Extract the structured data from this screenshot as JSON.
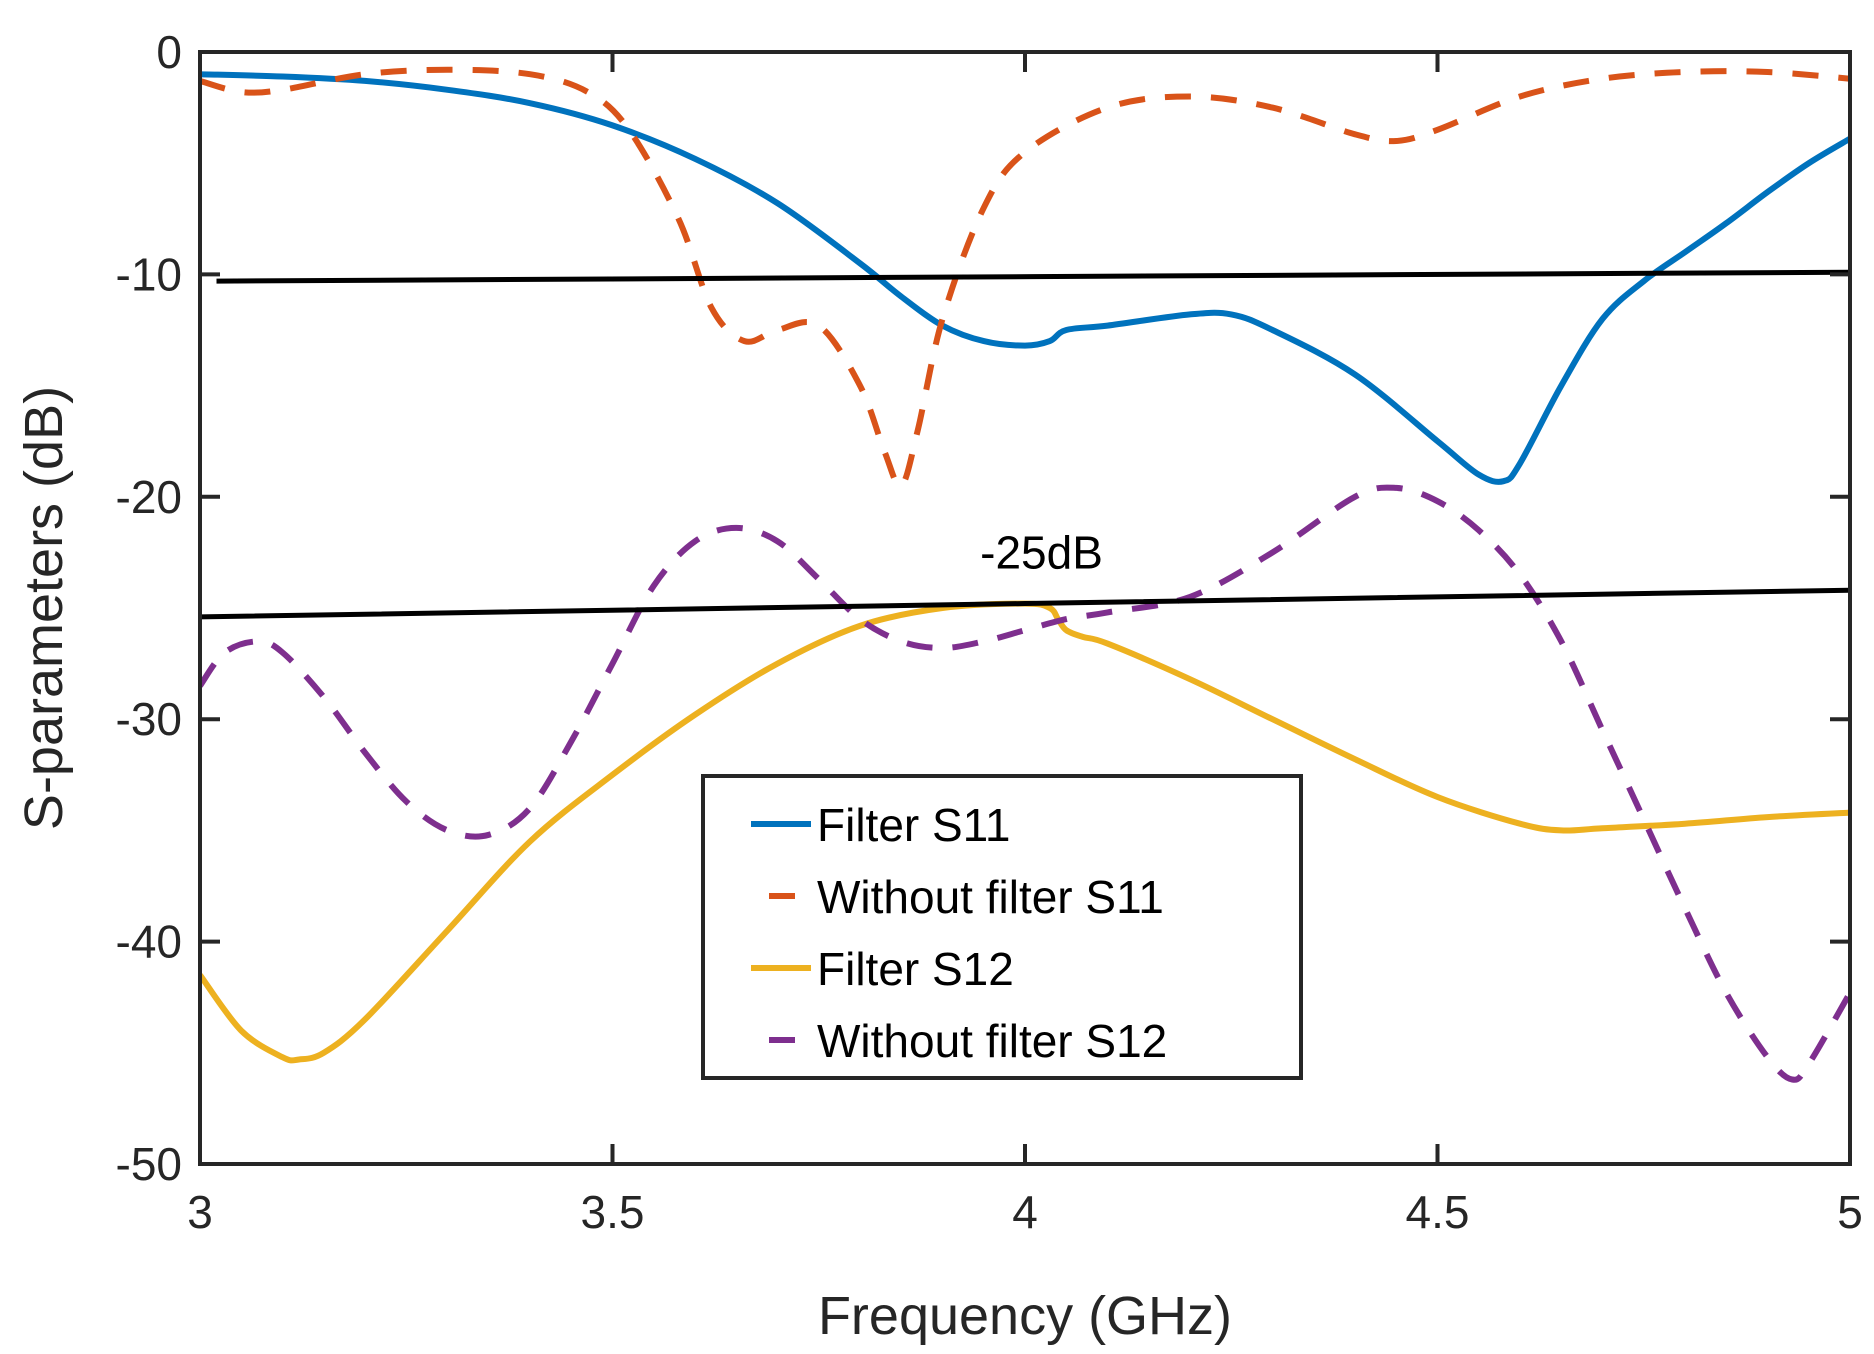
{
  "chart_data": {
    "type": "line",
    "xlabel": "Frequency (GHz)",
    "ylabel": "S-parameters (dB)",
    "xlim": [
      3,
      5
    ],
    "ylim": [
      -50,
      0
    ],
    "xticks": [
      3,
      3.5,
      4,
      4.5,
      5
    ],
    "xtick_labels": [
      "3",
      "3.5",
      "4",
      "4.5",
      "5"
    ],
    "yticks": [
      0,
      -10,
      -20,
      -30,
      -40,
      -50
    ],
    "ytick_labels": [
      "0",
      "-10",
      "-20",
      "-30",
      "-40",
      "-50"
    ],
    "grid": false,
    "legend_position": "lower-center",
    "series": [
      {
        "name": "Filter S11",
        "color": "#0072BD",
        "style": "solid",
        "x": [
          3.0,
          3.1,
          3.2,
          3.3,
          3.4,
          3.5,
          3.6,
          3.7,
          3.8,
          3.85,
          3.9,
          3.95,
          4.0,
          4.03,
          4.05,
          4.1,
          4.2,
          4.25,
          4.3,
          4.4,
          4.5,
          4.55,
          4.58,
          4.6,
          4.65,
          4.7,
          4.75,
          4.8,
          4.85,
          4.9,
          4.95,
          5.0
        ],
        "y": [
          -1.0,
          -1.1,
          -1.3,
          -1.7,
          -2.3,
          -3.3,
          -4.8,
          -6.8,
          -9.5,
          -11.0,
          -12.3,
          -13.0,
          -13.2,
          -13.0,
          -12.5,
          -12.3,
          -11.8,
          -11.8,
          -12.5,
          -14.5,
          -17.5,
          -19.0,
          -19.3,
          -18.5,
          -15.0,
          -12.0,
          -10.3,
          -9.0,
          -7.7,
          -6.3,
          -5.0,
          -3.9
        ]
      },
      {
        "name": "Without filter S11",
        "color": "#D95319",
        "style": "dashed",
        "x": [
          3.0,
          3.05,
          3.1,
          3.2,
          3.3,
          3.4,
          3.47,
          3.52,
          3.58,
          3.62,
          3.66,
          3.7,
          3.75,
          3.8,
          3.83,
          3.85,
          3.87,
          3.9,
          3.95,
          4.0,
          4.1,
          4.2,
          4.3,
          4.4,
          4.45,
          4.5,
          4.6,
          4.7,
          4.8,
          4.9,
          5.0
        ],
        "y": [
          -1.3,
          -1.8,
          -1.7,
          -1.0,
          -0.8,
          -1.0,
          -1.8,
          -3.5,
          -7.5,
          -11.5,
          -13.0,
          -12.5,
          -12.3,
          -15.0,
          -18.0,
          -19.5,
          -17.0,
          -12.0,
          -7.0,
          -4.5,
          -2.5,
          -2.0,
          -2.5,
          -3.7,
          -4.0,
          -3.5,
          -2.0,
          -1.2,
          -0.9,
          -0.9,
          -1.2
        ]
      },
      {
        "name": "Filter S12",
        "color": "#EDB120",
        "style": "solid",
        "x": [
          3.0,
          3.05,
          3.1,
          3.12,
          3.15,
          3.2,
          3.3,
          3.4,
          3.5,
          3.6,
          3.7,
          3.8,
          3.9,
          4.0,
          4.03,
          4.04,
          4.05,
          4.07,
          4.1,
          4.2,
          4.3,
          4.4,
          4.5,
          4.6,
          4.65,
          4.7,
          4.8,
          4.9,
          5.0
        ],
        "y": [
          -41.5,
          -44.0,
          -45.2,
          -45.3,
          -45.0,
          -43.5,
          -39.5,
          -35.5,
          -32.5,
          -29.8,
          -27.5,
          -25.8,
          -25.0,
          -24.8,
          -25.0,
          -25.5,
          -26.0,
          -26.3,
          -26.6,
          -28.2,
          -30.0,
          -31.8,
          -33.5,
          -34.7,
          -35.0,
          -34.9,
          -34.7,
          -34.4,
          -34.2
        ]
      },
      {
        "name": "Without filter S12",
        "color": "#7E2F8E",
        "style": "dashed",
        "x": [
          3.0,
          3.03,
          3.07,
          3.1,
          3.15,
          3.2,
          3.25,
          3.3,
          3.35,
          3.4,
          3.45,
          3.5,
          3.55,
          3.6,
          3.65,
          3.7,
          3.75,
          3.8,
          3.85,
          3.9,
          3.95,
          4.0,
          4.05,
          4.1,
          4.2,
          4.3,
          4.4,
          4.45,
          4.5,
          4.55,
          4.6,
          4.65,
          4.7,
          4.75,
          4.8,
          4.85,
          4.9,
          4.93,
          4.95,
          5.0
        ],
        "y": [
          -28.5,
          -27.0,
          -26.5,
          -27.0,
          -29.0,
          -31.5,
          -33.7,
          -35.0,
          -35.2,
          -34.0,
          -31.0,
          -27.5,
          -24.0,
          -22.0,
          -21.4,
          -22.0,
          -23.7,
          -25.5,
          -26.5,
          -26.8,
          -26.5,
          -26.0,
          -25.5,
          -25.2,
          -24.5,
          -22.5,
          -20.0,
          -19.6,
          -20.2,
          -21.5,
          -23.5,
          -26.5,
          -30.5,
          -34.5,
          -38.5,
          -42.3,
          -45.2,
          -46.2,
          -45.5,
          -42.3
        ]
      },
      {
        "name": "",
        "color": "#000000",
        "style": "solid",
        "x": [
          3.02,
          5.0
        ],
        "y": [
          -10.3,
          -9.9
        ]
      },
      {
        "name": "",
        "color": "#000000",
        "style": "solid",
        "x": [
          3.0,
          5.0
        ],
        "y": [
          -25.4,
          -24.2
        ]
      }
    ],
    "annotations": [
      {
        "text": "-25dB",
        "x": 4.02,
        "y": -22.5
      }
    ]
  }
}
